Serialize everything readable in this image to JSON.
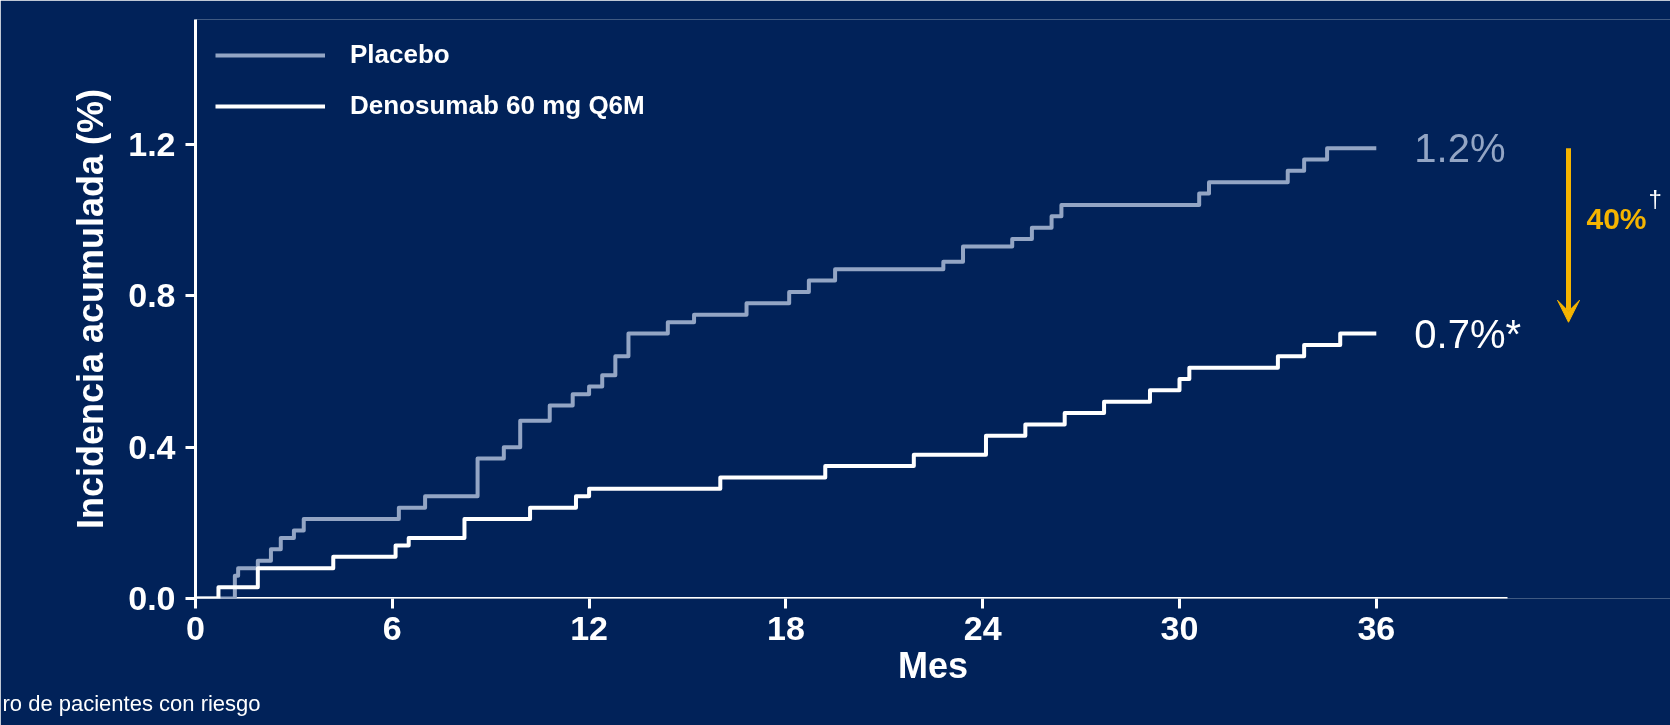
{
  "chart_data": {
    "type": "step",
    "xlabel": "Mes",
    "ylabel": "Incidencia acumulada (%)",
    "xlim": [
      0,
      40
    ],
    "ylim": [
      0,
      1.53
    ],
    "xticks": [
      0,
      6,
      12,
      18,
      24,
      30,
      36
    ],
    "yticks": [
      {
        "value": 0,
        "label": "0.0"
      },
      {
        "value": 0.4,
        "label": "0.4"
      },
      {
        "value": 0.8,
        "label": "0.8"
      },
      {
        "value": 1.2,
        "label": "1.2"
      }
    ],
    "grid": false,
    "legend": "top left",
    "marker": "none",
    "line_style": "solid",
    "series": [
      {
        "name": "Placebo",
        "color": "#93a5c4",
        "x": [
          0,
          1.2,
          1.3,
          1.9,
          2.3,
          2.6,
          3.0,
          3.3,
          6.2,
          7.0,
          8.6,
          9.4,
          9.9,
          10.8,
          11.5,
          12.0,
          12.4,
          12.8,
          13.2,
          14.4,
          15.2,
          16.8,
          18.1,
          18.7,
          19.5,
          22.8,
          23.4,
          24.9,
          25.5,
          26.1,
          26.4,
          30.6,
          30.9,
          33.3,
          33.8,
          34.5,
          36
        ],
        "values": [
          0,
          0.06,
          0.08,
          0.1,
          0.13,
          0.16,
          0.18,
          0.21,
          0.24,
          0.27,
          0.37,
          0.4,
          0.47,
          0.51,
          0.54,
          0.56,
          0.59,
          0.64,
          0.7,
          0.73,
          0.75,
          0.78,
          0.81,
          0.84,
          0.87,
          0.89,
          0.93,
          0.95,
          0.98,
          1.01,
          1.04,
          1.07,
          1.1,
          1.13,
          1.16,
          1.19,
          1.19
        ]
      },
      {
        "name": "Denosumab 60 mg Q6M",
        "color": "#ffffff",
        "x": [
          0,
          0.7,
          1.9,
          4.2,
          6.1,
          6.5,
          8.2,
          10.2,
          11.6,
          12.0,
          16.0,
          19.2,
          21.9,
          24.1,
          25.3,
          26.5,
          27.7,
          29.1,
          30.0,
          30.3,
          33.0,
          33.8,
          34.9,
          36
        ],
        "values": [
          0,
          0.03,
          0.08,
          0.11,
          0.14,
          0.16,
          0.21,
          0.24,
          0.27,
          0.29,
          0.32,
          0.35,
          0.38,
          0.43,
          0.46,
          0.49,
          0.52,
          0.55,
          0.58,
          0.61,
          0.64,
          0.67,
          0.7,
          0.7
        ]
      }
    ],
    "annotations": [
      {
        "text": "1.2%",
        "x": 36,
        "y": 1.19
      },
      {
        "text": "0.7%*",
        "x": 36,
        "y": 0.7
      },
      "40%$^{†}$",
      "ro de pacientes con riesgo"
    ]
  }
}
